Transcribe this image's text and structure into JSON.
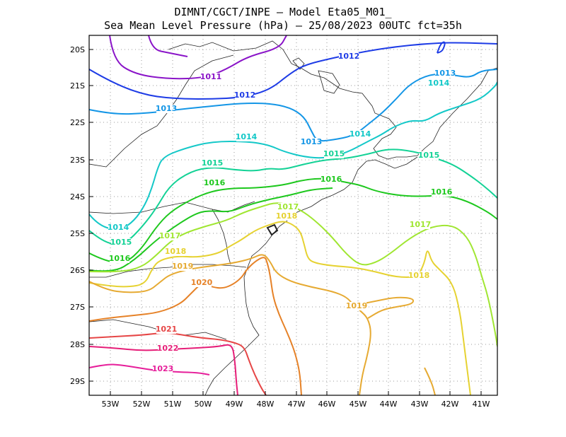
{
  "title_line1": "DIMNT/CGCT/INPE –  Model Eta05_M01_",
  "title_line2": "Sea Mean Level Pressure (hPa) – 25/08/2023 00UTC fct=35h",
  "lon_ticks": [
    "53W",
    "52W",
    "51W",
    "50W",
    "49W",
    "48W",
    "47W",
    "46W",
    "45W",
    "44W",
    "43W",
    "42W",
    "41W"
  ],
  "lat_ticks": [
    "20S",
    "21S",
    "22S",
    "23S",
    "24S",
    "25S",
    "26S",
    "27S",
    "28S",
    "29S"
  ],
  "isobar_labels": [
    "1011",
    "1012",
    "1013",
    "1014",
    "1015",
    "1016",
    "1017",
    "1018",
    "1019",
    "1020",
    "1021",
    "1022",
    "1023"
  ],
  "isobar_colors": {
    "1011": "#8a14c8",
    "1012": "#1e3ce6",
    "1013": "#1496e6",
    "1014": "#14c8c8",
    "1015": "#14d296",
    "1016": "#1ec81e",
    "1017": "#a0e632",
    "1018": "#e6d232",
    "1019": "#e6aa32",
    "1020": "#e68228",
    "1021": "#e64646",
    "1022": "#e61e78",
    "1023": "#e61e9a"
  }
}
